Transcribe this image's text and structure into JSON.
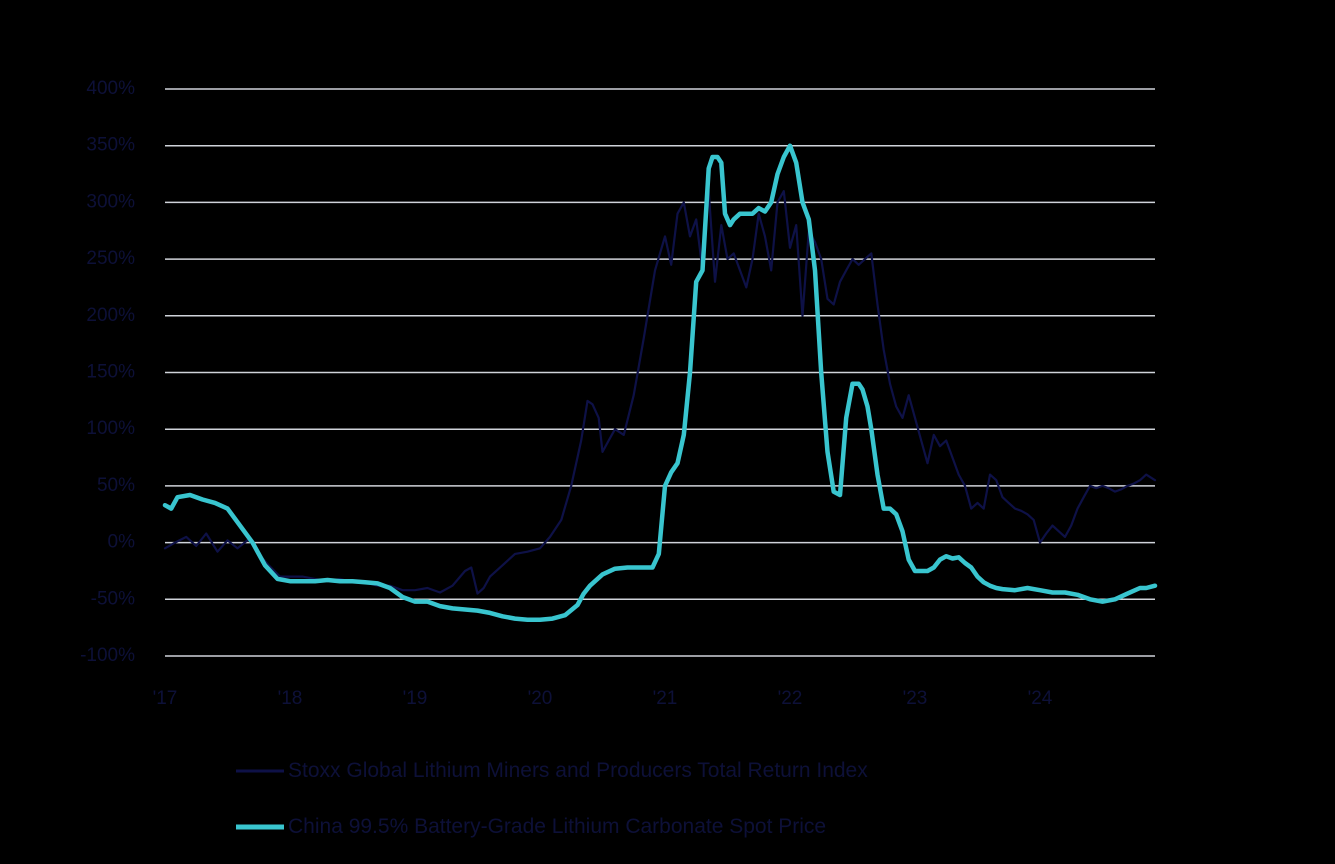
{
  "colors": {
    "background": "#000000",
    "text": "#0d1038",
    "grid": "#cfd3da"
  },
  "chart_data": {
    "type": "line",
    "x_unit": "year",
    "xlim": [
      2017.0,
      2024.92
    ],
    "ylim": [
      -100,
      400
    ],
    "y_ticks": [
      400,
      350,
      300,
      250,
      200,
      150,
      100,
      50,
      0,
      -50,
      -100
    ],
    "y_tick_labels": [
      "400%",
      "350%",
      "300%",
      "250%",
      "200%",
      "150%",
      "100%",
      "50%",
      "0%",
      "-50%",
      "-100%"
    ],
    "x_ticks": [
      2017,
      2018,
      2019,
      2020,
      2021,
      2022,
      2023,
      2024
    ],
    "x_tick_labels": [
      "'17",
      "'18",
      "'19",
      "'20",
      "'21",
      "'22",
      "'23",
      "'24"
    ],
    "grid": true,
    "legend_position": "bottom",
    "series": [
      {
        "name": "Stoxx Global Lithium Miners and Producers Total Return Index",
        "color": "#0e1147",
        "x": [
          2017.0,
          2017.08,
          2017.17,
          2017.25,
          2017.33,
          2017.42,
          2017.5,
          2017.58,
          2017.67,
          2017.75,
          2017.83,
          2017.92,
          2018.0,
          2018.1,
          2018.2,
          2018.3,
          2018.4,
          2018.5,
          2018.6,
          2018.7,
          2018.8,
          2018.9,
          2019.0,
          2019.1,
          2019.2,
          2019.3,
          2019.4,
          2019.45,
          2019.5,
          2019.55,
          2019.6,
          2019.7,
          2019.8,
          2019.9,
          2020.0,
          2020.08,
          2020.17,
          2020.25,
          2020.33,
          2020.38,
          2020.42,
          2020.47,
          2020.5,
          2020.55,
          2020.6,
          2020.67,
          2020.75,
          2020.83,
          2020.92,
          2021.0,
          2021.05,
          2021.1,
          2021.15,
          2021.2,
          2021.25,
          2021.3,
          2021.35,
          2021.4,
          2021.45,
          2021.5,
          2021.55,
          2021.6,
          2021.65,
          2021.7,
          2021.75,
          2021.8,
          2021.85,
          2021.9,
          2021.95,
          2022.0,
          2022.05,
          2022.1,
          2022.15,
          2022.2,
          2022.25,
          2022.3,
          2022.35,
          2022.4,
          2022.45,
          2022.5,
          2022.55,
          2022.6,
          2022.65,
          2022.7,
          2022.75,
          2022.8,
          2022.85,
          2022.9,
          2022.95,
          2023.0,
          2023.05,
          2023.1,
          2023.15,
          2023.2,
          2023.25,
          2023.3,
          2023.35,
          2023.4,
          2023.45,
          2023.5,
          2023.55,
          2023.6,
          2023.65,
          2023.7,
          2023.75,
          2023.8,
          2023.85,
          2023.9,
          2023.95,
          2024.0,
          2024.05,
          2024.1,
          2024.15,
          2024.2,
          2024.25,
          2024.3,
          2024.35,
          2024.4,
          2024.45,
          2024.5,
          2024.55,
          2024.6,
          2024.65,
          2024.7,
          2024.75,
          2024.8,
          2024.85,
          2024.92
        ],
        "y": [
          -5,
          0,
          5,
          -3,
          8,
          -8,
          2,
          -5,
          3,
          -10,
          -20,
          -30,
          -30,
          -30,
          -32,
          -34,
          -32,
          -35,
          -35,
          -38,
          -38,
          -42,
          -42,
          -40,
          -44,
          -38,
          -25,
          -22,
          -45,
          -40,
          -30,
          -20,
          -10,
          -8,
          -5,
          5,
          20,
          50,
          90,
          125,
          122,
          110,
          80,
          90,
          100,
          95,
          130,
          180,
          240,
          270,
          245,
          290,
          300,
          270,
          285,
          240,
          310,
          230,
          280,
          250,
          255,
          240,
          225,
          250,
          290,
          270,
          240,
          300,
          310,
          260,
          280,
          200,
          275,
          265,
          250,
          215,
          210,
          230,
          240,
          250,
          245,
          250,
          255,
          210,
          170,
          140,
          120,
          110,
          130,
          110,
          90,
          70,
          95,
          85,
          90,
          75,
          60,
          50,
          30,
          35,
          30,
          60,
          55,
          40,
          35,
          30,
          28,
          25,
          20,
          0,
          8,
          15,
          10,
          5,
          15,
          30,
          40,
          50,
          48,
          50,
          48,
          45,
          47,
          50,
          52,
          55,
          60,
          55
        ],
        "width": 2.2
      },
      {
        "name": "China 99.5% Battery-Grade Lithium Carbonate Spot Price",
        "color": "#39c5cf",
        "x": [
          2017.0,
          2017.05,
          2017.1,
          2017.2,
          2017.3,
          2017.4,
          2017.5,
          2017.6,
          2017.7,
          2017.8,
          2017.9,
          2018.0,
          2018.1,
          2018.2,
          2018.3,
          2018.4,
          2018.5,
          2018.6,
          2018.7,
          2018.8,
          2018.9,
          2019.0,
          2019.1,
          2019.2,
          2019.3,
          2019.4,
          2019.5,
          2019.6,
          2019.7,
          2019.8,
          2019.9,
          2020.0,
          2020.1,
          2020.2,
          2020.3,
          2020.35,
          2020.4,
          2020.5,
          2020.6,
          2020.7,
          2020.8,
          2020.9,
          2020.95,
          2021.0,
          2021.05,
          2021.1,
          2021.15,
          2021.2,
          2021.25,
          2021.3,
          2021.35,
          2021.38,
          2021.42,
          2021.45,
          2021.48,
          2021.52,
          2021.55,
          2021.6,
          2021.65,
          2021.7,
          2021.75,
          2021.8,
          2021.85,
          2021.9,
          2021.95,
          2022.0,
          2022.05,
          2022.1,
          2022.15,
          2022.2,
          2022.25,
          2022.3,
          2022.35,
          2022.4,
          2022.45,
          2022.5,
          2022.55,
          2022.58,
          2022.62,
          2022.65,
          2022.7,
          2022.75,
          2022.8,
          2022.85,
          2022.9,
          2022.95,
          2023.0,
          2023.05,
          2023.1,
          2023.15,
          2023.2,
          2023.25,
          2023.3,
          2023.35,
          2023.4,
          2023.45,
          2023.5,
          2023.55,
          2023.6,
          2023.65,
          2023.7,
          2023.8,
          2023.9,
          2024.0,
          2024.1,
          2024.2,
          2024.3,
          2024.4,
          2024.5,
          2024.6,
          2024.7,
          2024.8,
          2024.85,
          2024.92
        ],
        "y": [
          33,
          30,
          40,
          42,
          38,
          35,
          30,
          15,
          0,
          -20,
          -32,
          -34,
          -34,
          -34,
          -33,
          -34,
          -34,
          -35,
          -36,
          -40,
          -48,
          -52,
          -52,
          -56,
          -58,
          -59,
          -60,
          -62,
          -65,
          -67,
          -68,
          -68,
          -67,
          -64,
          -55,
          -45,
          -38,
          -28,
          -23,
          -22,
          -22,
          -22,
          -10,
          50,
          62,
          70,
          95,
          150,
          230,
          240,
          330,
          340,
          340,
          335,
          290,
          280,
          285,
          290,
          290,
          290,
          295,
          292,
          300,
          325,
          340,
          350,
          335,
          300,
          285,
          240,
          150,
          80,
          45,
          42,
          110,
          140,
          140,
          135,
          120,
          100,
          60,
          30,
          30,
          25,
          10,
          -15,
          -25,
          -25,
          -25,
          -22,
          -15,
          -12,
          -14,
          -13,
          -18,
          -22,
          -30,
          -35,
          -38,
          -40,
          -41,
          -42,
          -40,
          -42,
          -44,
          -44,
          -46,
          -50,
          -52,
          -50,
          -45,
          -40,
          -40,
          -38
        ],
        "width": 4.5
      }
    ]
  }
}
